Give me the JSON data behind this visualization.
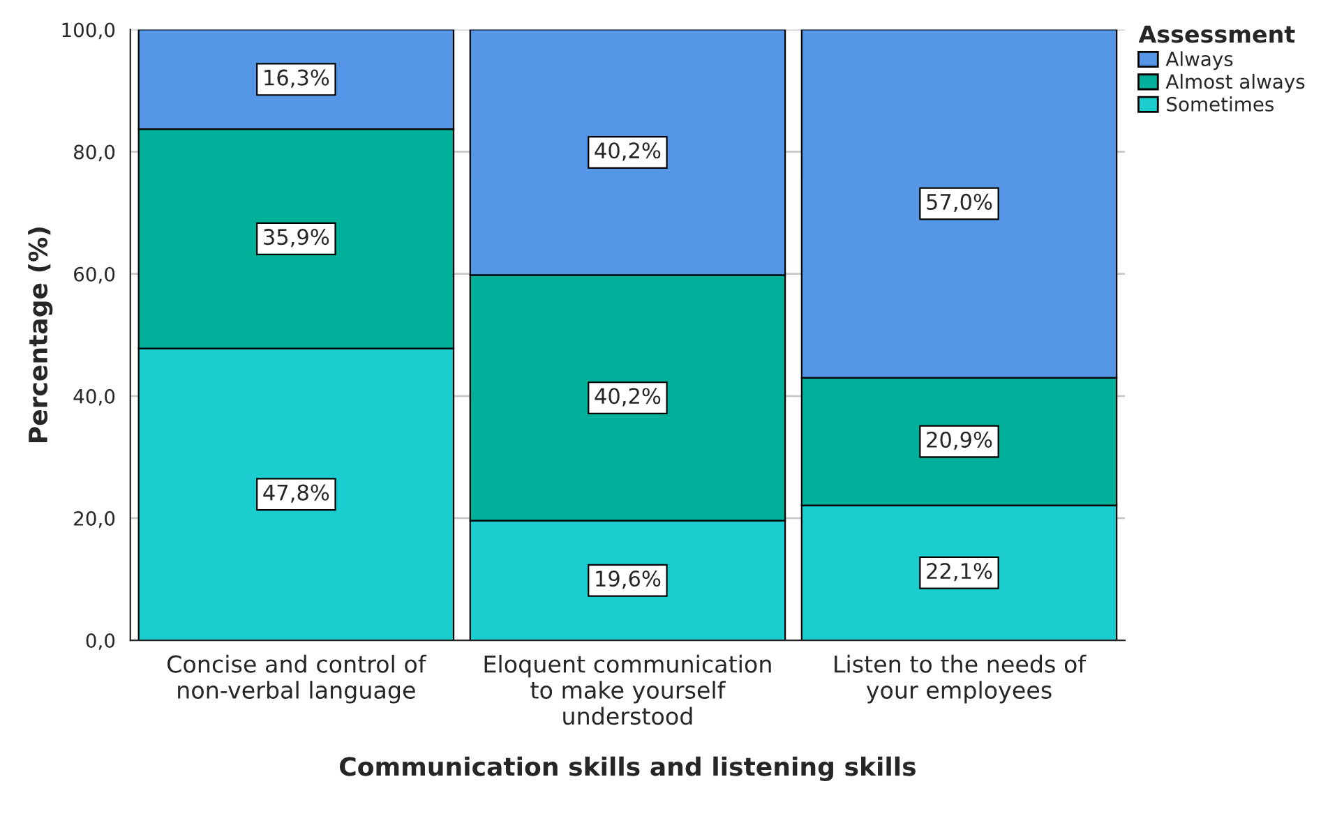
{
  "chart_data": {
    "type": "bar",
    "stacked": true,
    "xlabel": "Communication skills and listening skills",
    "ylabel": "Percentage (%)",
    "legend_title": "Assessment",
    "categories": [
      "Concise and control of non-verbal language",
      "Eloquent communication to make yourself understood",
      "Listen to the needs of your employees"
    ],
    "series": [
      {
        "name": "Sometimes",
        "color": "#1ccdd0",
        "values": [
          47.8,
          19.6,
          22.1
        ],
        "value_labels": [
          "47,8%",
          "19,6%",
          "22,1%"
        ]
      },
      {
        "name": "Almost always",
        "color": "#00b09a",
        "values": [
          35.9,
          40.2,
          20.9
        ],
        "value_labels": [
          "35,9%",
          "40,2%",
          "20,9%"
        ]
      },
      {
        "name": "Always",
        "color": "#5596e6",
        "values": [
          16.3,
          40.2,
          57.0
        ],
        "value_labels": [
          "16,3%",
          "40,2%",
          "57,0%"
        ]
      }
    ],
    "ylim": [
      0,
      100
    ],
    "yticks": [
      {
        "value": 0,
        "label": "0,0"
      },
      {
        "value": 20,
        "label": "20,0"
      },
      {
        "value": 40,
        "label": "40,0"
      },
      {
        "value": 60,
        "label": "60,0"
      },
      {
        "value": 80,
        "label": "80,0"
      },
      {
        "value": 100,
        "label": "100,0"
      }
    ],
    "grid": "y",
    "legend": "top right"
  }
}
